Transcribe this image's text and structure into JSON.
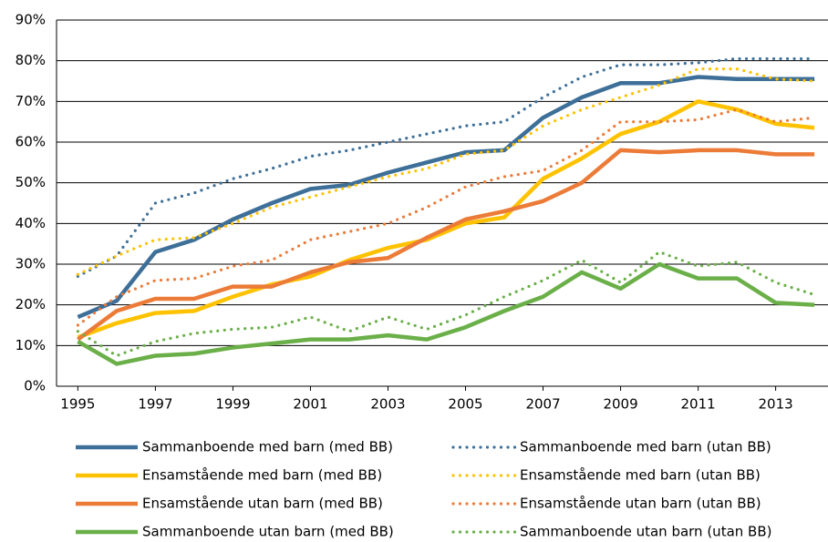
{
  "chart_data": {
    "type": "line",
    "x": [
      1995,
      1996,
      1997,
      1998,
      1999,
      2000,
      2001,
      2002,
      2003,
      2004,
      2005,
      2006,
      2007,
      2008,
      2009,
      2010,
      2011,
      2012,
      2013,
      2014
    ],
    "xlim": [
      1994.45,
      2014.35
    ],
    "xticks": [
      1995,
      1997,
      1999,
      2001,
      2003,
      2005,
      2007,
      2009,
      2011,
      2013
    ],
    "ylim": [
      0,
      90
    ],
    "yticks": [
      {
        "value": 0,
        "label": "0%"
      },
      {
        "value": 10,
        "label": "10%"
      },
      {
        "value": 20,
        "label": "20%"
      },
      {
        "value": 30,
        "label": "30%"
      },
      {
        "value": 40,
        "label": "40%"
      },
      {
        "value": 50,
        "label": "50%"
      },
      {
        "value": 60,
        "label": "60%"
      },
      {
        "value": 70,
        "label": "70%"
      },
      {
        "value": 80,
        "label": "80%"
      },
      {
        "value": 90,
        "label": "90%"
      }
    ],
    "grid": true,
    "legend": "bottom",
    "series": [
      {
        "name": "Sammanboende med barn (med BB)",
        "color": "#3d6f98",
        "line_style": "solid",
        "values": [
          17,
          21,
          33,
          36,
          41,
          45,
          48.5,
          49.5,
          52.5,
          55,
          57.5,
          58,
          66,
          71,
          74.5,
          74.5,
          76,
          75.5,
          75.5,
          75.5
        ]
      },
      {
        "name": "Sammanboende med barn (utan BB)",
        "color": "#3d6f98",
        "line_style": "dotted",
        "values": [
          27,
          32,
          45,
          47.5,
          51,
          53.5,
          56.5,
          58,
          60,
          62,
          64,
          65,
          71,
          76,
          79,
          79,
          79.5,
          80.5,
          80.5,
          80.5
        ]
      },
      {
        "name": "Ensamstående med barn (med BB)",
        "color": "#fec200",
        "line_style": "solid",
        "values": [
          12,
          15.5,
          18,
          18.5,
          22,
          25,
          27,
          31,
          34,
          36,
          40,
          41.5,
          51,
          56,
          62,
          65,
          70,
          68,
          64.5,
          63.5
        ]
      },
      {
        "name": "Ensamstående med barn (utan BB)",
        "color": "#fec200",
        "line_style": "dotted",
        "values": [
          27.5,
          32,
          36,
          36.5,
          40,
          44,
          46.5,
          49,
          51.5,
          53.5,
          57,
          58,
          64,
          68,
          71,
          74,
          78,
          78,
          75.5,
          75
        ]
      },
      {
        "name": "Ensamstående utan barn (med BB)",
        "color": "#ec7b38",
        "line_style": "solid",
        "values": [
          11.5,
          18.5,
          21.5,
          21.5,
          24.5,
          24.5,
          28,
          30.5,
          31.5,
          36.5,
          41,
          43,
          45.5,
          50,
          58,
          57.5,
          58,
          58,
          57,
          57
        ]
      },
      {
        "name": "Ensamstående utan barn (utan BB)",
        "color": "#ec7b38",
        "line_style": "dotted",
        "values": [
          15,
          22,
          26,
          26.5,
          29.5,
          31,
          36,
          38,
          40,
          44,
          49,
          51.5,
          53,
          58,
          65,
          65,
          65.5,
          68,
          65,
          66
        ]
      },
      {
        "name": "Sammanboende utan barn (med BB)",
        "color": "#6aaf48",
        "line_style": "solid",
        "values": [
          11,
          5.5,
          7.5,
          8,
          9.5,
          10.5,
          11.5,
          11.5,
          12.5,
          11.5,
          14.5,
          18.5,
          22,
          28,
          24,
          30,
          26.5,
          26.5,
          20.5,
          20
        ]
      },
      {
        "name": "Sammanboende utan barn (utan BB)",
        "color": "#6aaf48",
        "line_style": "dotted",
        "values": [
          13.5,
          7.5,
          11,
          13,
          14,
          14.5,
          17,
          13.5,
          17,
          14,
          17.5,
          22,
          26,
          31,
          25.5,
          33,
          29.5,
          30.5,
          25.5,
          22.5
        ]
      }
    ]
  }
}
